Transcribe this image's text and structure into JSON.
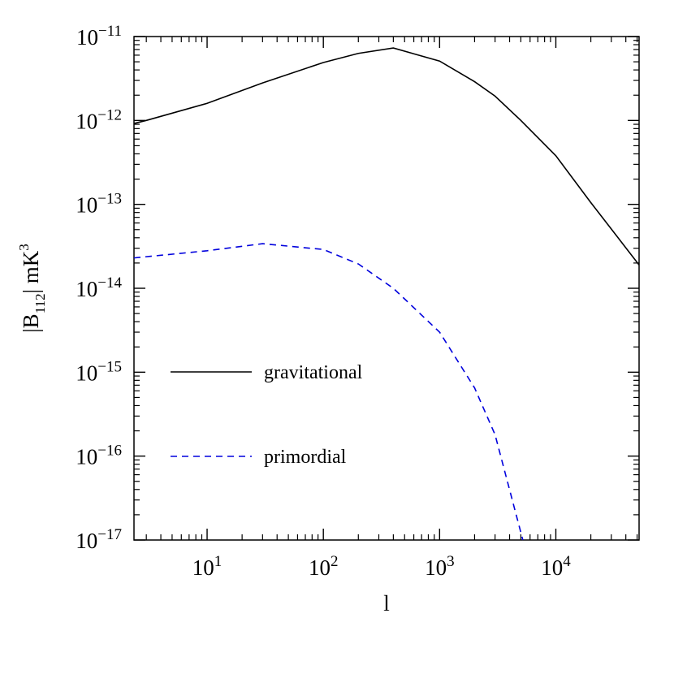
{
  "chart_data": {
    "type": "line",
    "xlabel": "l",
    "ylabel": "|B112|   mK3",
    "xscale": "log",
    "yscale": "log",
    "xlim": [
      2.35,
      52000
    ],
    "ylim": [
      1e-17,
      1e-11
    ],
    "xticks": [
      {
        "value": 10,
        "label": "101"
      },
      {
        "value": 100,
        "label": "102"
      },
      {
        "value": 1000,
        "label": "103"
      },
      {
        "value": 10000,
        "label": "104"
      }
    ],
    "yticks": [
      {
        "value": 1e-17,
        "label": "10−17"
      },
      {
        "value": 1e-16,
        "label": "10−16"
      },
      {
        "value": 1e-15,
        "label": "10−15"
      },
      {
        "value": 1e-14,
        "label": "10−14"
      },
      {
        "value": 1e-13,
        "label": "10−13"
      },
      {
        "value": 1e-12,
        "label": "10−12"
      },
      {
        "value": 1e-11,
        "label": "10−11"
      }
    ],
    "legend": "lower left",
    "series": [
      {
        "name": "gravitational",
        "color": "#000000",
        "dash": false,
        "x": [
          2.35,
          3,
          10,
          30,
          100,
          200,
          400,
          1000,
          2000,
          3000,
          5000,
          10000,
          20000,
          52000
        ],
        "values": [
          9.2e-13,
          1e-12,
          1.6e-12,
          2.8e-12,
          4.9e-12,
          6.3e-12,
          7.3e-12,
          5.1e-12,
          2.9e-12,
          1.95e-12,
          1e-12,
          3.8e-13,
          1.05e-13,
          1.9e-14
        ]
      },
      {
        "name": "primordial",
        "color": "#0000dd",
        "dash": true,
        "x": [
          2.35,
          10,
          30,
          100,
          200,
          400,
          1000,
          2000,
          3000,
          5200
        ],
        "values": [
          2.3e-14,
          2.8e-14,
          3.4e-14,
          2.9e-14,
          1.95e-14,
          1e-14,
          3e-15,
          6.5e-16,
          1.8e-16,
          1e-17
        ]
      }
    ]
  }
}
